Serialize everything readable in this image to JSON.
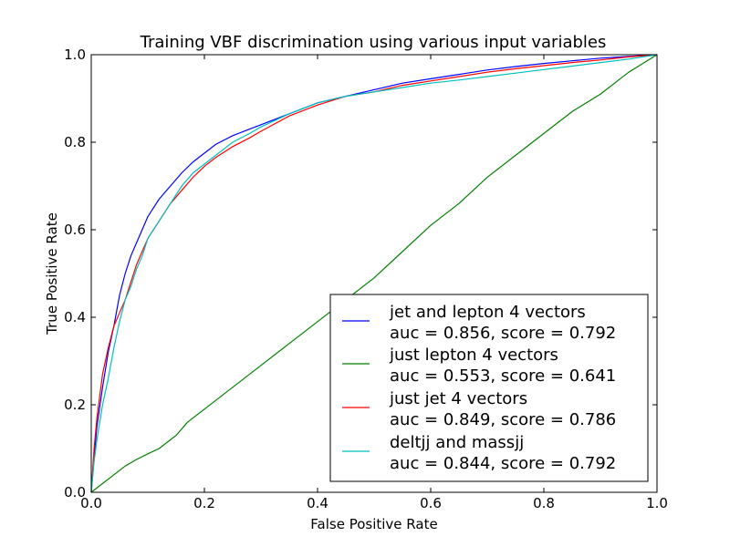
{
  "chart_data": {
    "type": "line",
    "title": "Training VBF discrimination using various input variables",
    "xlabel": "False Positive Rate",
    "ylabel": "True Positive Rate",
    "xlim": [
      0.0,
      1.0
    ],
    "ylim": [
      0.0,
      1.0
    ],
    "xticks": [
      "0.0",
      "0.2",
      "0.4",
      "0.6",
      "0.8",
      "1.0"
    ],
    "yticks": [
      "0.0",
      "0.2",
      "0.4",
      "0.6",
      "0.8",
      "1.0"
    ],
    "grid": false,
    "legend_position": "bottom-right",
    "series": [
      {
        "name": "jet and lepton 4 vectors",
        "sub": "auc = 0.856, score = 0.792",
        "color": "#0000ff",
        "points": [
          [
            0,
            0
          ],
          [
            0.005,
            0.08
          ],
          [
            0.01,
            0.15
          ],
          [
            0.02,
            0.24
          ],
          [
            0.03,
            0.32
          ],
          [
            0.04,
            0.38
          ],
          [
            0.05,
            0.45
          ],
          [
            0.06,
            0.5
          ],
          [
            0.07,
            0.54
          ],
          [
            0.08,
            0.57
          ],
          [
            0.09,
            0.6
          ],
          [
            0.1,
            0.63
          ],
          [
            0.12,
            0.67
          ],
          [
            0.14,
            0.7
          ],
          [
            0.16,
            0.73
          ],
          [
            0.18,
            0.755
          ],
          [
            0.2,
            0.775
          ],
          [
            0.22,
            0.795
          ],
          [
            0.25,
            0.815
          ],
          [
            0.28,
            0.83
          ],
          [
            0.3,
            0.84
          ],
          [
            0.35,
            0.865
          ],
          [
            0.4,
            0.89
          ],
          [
            0.45,
            0.905
          ],
          [
            0.5,
            0.92
          ],
          [
            0.55,
            0.935
          ],
          [
            0.6,
            0.945
          ],
          [
            0.65,
            0.955
          ],
          [
            0.7,
            0.965
          ],
          [
            0.75,
            0.973
          ],
          [
            0.8,
            0.98
          ],
          [
            0.85,
            0.986
          ],
          [
            0.9,
            0.992
          ],
          [
            0.95,
            0.996
          ],
          [
            1.0,
            1.0
          ]
        ]
      },
      {
        "name": "just lepton 4 vectors",
        "sub": "auc = 0.553, score = 0.641",
        "color": "#008000",
        "points": [
          [
            0,
            0
          ],
          [
            0.02,
            0.02
          ],
          [
            0.04,
            0.04
          ],
          [
            0.06,
            0.06
          ],
          [
            0.08,
            0.075
          ],
          [
            0.1,
            0.088
          ],
          [
            0.12,
            0.1
          ],
          [
            0.14,
            0.12
          ],
          [
            0.15,
            0.13
          ],
          [
            0.17,
            0.16
          ],
          [
            0.2,
            0.19
          ],
          [
            0.25,
            0.24
          ],
          [
            0.3,
            0.29
          ],
          [
            0.35,
            0.34
          ],
          [
            0.4,
            0.39
          ],
          [
            0.45,
            0.44
          ],
          [
            0.5,
            0.49
          ],
          [
            0.55,
            0.55
          ],
          [
            0.6,
            0.61
          ],
          [
            0.65,
            0.66
          ],
          [
            0.7,
            0.72
          ],
          [
            0.75,
            0.77
          ],
          [
            0.8,
            0.82
          ],
          [
            0.85,
            0.87
          ],
          [
            0.9,
            0.91
          ],
          [
            0.95,
            0.96
          ],
          [
            1.0,
            1.0
          ]
        ]
      },
      {
        "name": "just jet 4 vectors",
        "sub": "auc = 0.849, score = 0.786",
        "color": "#ff0000",
        "points": [
          [
            0,
            0
          ],
          [
            0.005,
            0.1
          ],
          [
            0.01,
            0.17
          ],
          [
            0.02,
            0.27
          ],
          [
            0.03,
            0.33
          ],
          [
            0.04,
            0.38
          ],
          [
            0.05,
            0.41
          ],
          [
            0.06,
            0.44
          ],
          [
            0.07,
            0.48
          ],
          [
            0.08,
            0.52
          ],
          [
            0.09,
            0.55
          ],
          [
            0.1,
            0.58
          ],
          [
            0.12,
            0.62
          ],
          [
            0.14,
            0.66
          ],
          [
            0.16,
            0.69
          ],
          [
            0.18,
            0.72
          ],
          [
            0.2,
            0.745
          ],
          [
            0.22,
            0.765
          ],
          [
            0.25,
            0.79
          ],
          [
            0.28,
            0.81
          ],
          [
            0.3,
            0.825
          ],
          [
            0.35,
            0.86
          ],
          [
            0.4,
            0.885
          ],
          [
            0.45,
            0.905
          ],
          [
            0.5,
            0.915
          ],
          [
            0.55,
            0.93
          ],
          [
            0.6,
            0.94
          ],
          [
            0.65,
            0.95
          ],
          [
            0.7,
            0.96
          ],
          [
            0.75,
            0.968
          ],
          [
            0.8,
            0.975
          ],
          [
            0.85,
            0.982
          ],
          [
            0.9,
            0.988
          ],
          [
            0.95,
            0.995
          ],
          [
            1.0,
            1.0
          ]
        ]
      },
      {
        "name": "deltjj and massjj",
        "sub": "auc = 0.844, score = 0.792",
        "color": "#00bfbf",
        "points": [
          [
            0,
            0
          ],
          [
            0.005,
            0.07
          ],
          [
            0.01,
            0.12
          ],
          [
            0.02,
            0.2
          ],
          [
            0.03,
            0.26
          ],
          [
            0.04,
            0.33
          ],
          [
            0.05,
            0.39
          ],
          [
            0.06,
            0.44
          ],
          [
            0.07,
            0.47
          ],
          [
            0.08,
            0.51
          ],
          [
            0.09,
            0.54
          ],
          [
            0.1,
            0.58
          ],
          [
            0.12,
            0.62
          ],
          [
            0.14,
            0.66
          ],
          [
            0.16,
            0.7
          ],
          [
            0.18,
            0.73
          ],
          [
            0.2,
            0.75
          ],
          [
            0.22,
            0.77
          ],
          [
            0.25,
            0.8
          ],
          [
            0.28,
            0.82
          ],
          [
            0.3,
            0.835
          ],
          [
            0.35,
            0.865
          ],
          [
            0.4,
            0.89
          ],
          [
            0.45,
            0.905
          ],
          [
            0.5,
            0.915
          ],
          [
            0.55,
            0.925
          ],
          [
            0.6,
            0.935
          ],
          [
            0.65,
            0.942
          ],
          [
            0.7,
            0.95
          ],
          [
            0.75,
            0.958
          ],
          [
            0.8,
            0.966
          ],
          [
            0.85,
            0.974
          ],
          [
            0.9,
            0.982
          ],
          [
            0.95,
            0.99
          ],
          [
            1.0,
            1.0
          ]
        ]
      }
    ]
  }
}
